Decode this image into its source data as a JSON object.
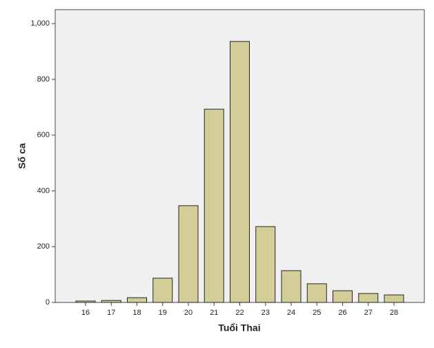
{
  "chart_data": {
    "type": "bar",
    "x_label": "Tuổi Thai",
    "y_label": "Số ca",
    "categories": [
      "16",
      "17",
      "18",
      "19",
      "20",
      "21",
      "22",
      "23",
      "24",
      "25",
      "26",
      "27",
      "28"
    ],
    "values": [
      5,
      7,
      17,
      87,
      347,
      693,
      936,
      272,
      114,
      67,
      42,
      32,
      27
    ],
    "color": "#d3ce97",
    "ylim": [
      0,
      1050
    ],
    "yticks": [
      0,
      200,
      400,
      600,
      800,
      {
        "value": 1000,
        "label": "1,000"
      }
    ]
  }
}
